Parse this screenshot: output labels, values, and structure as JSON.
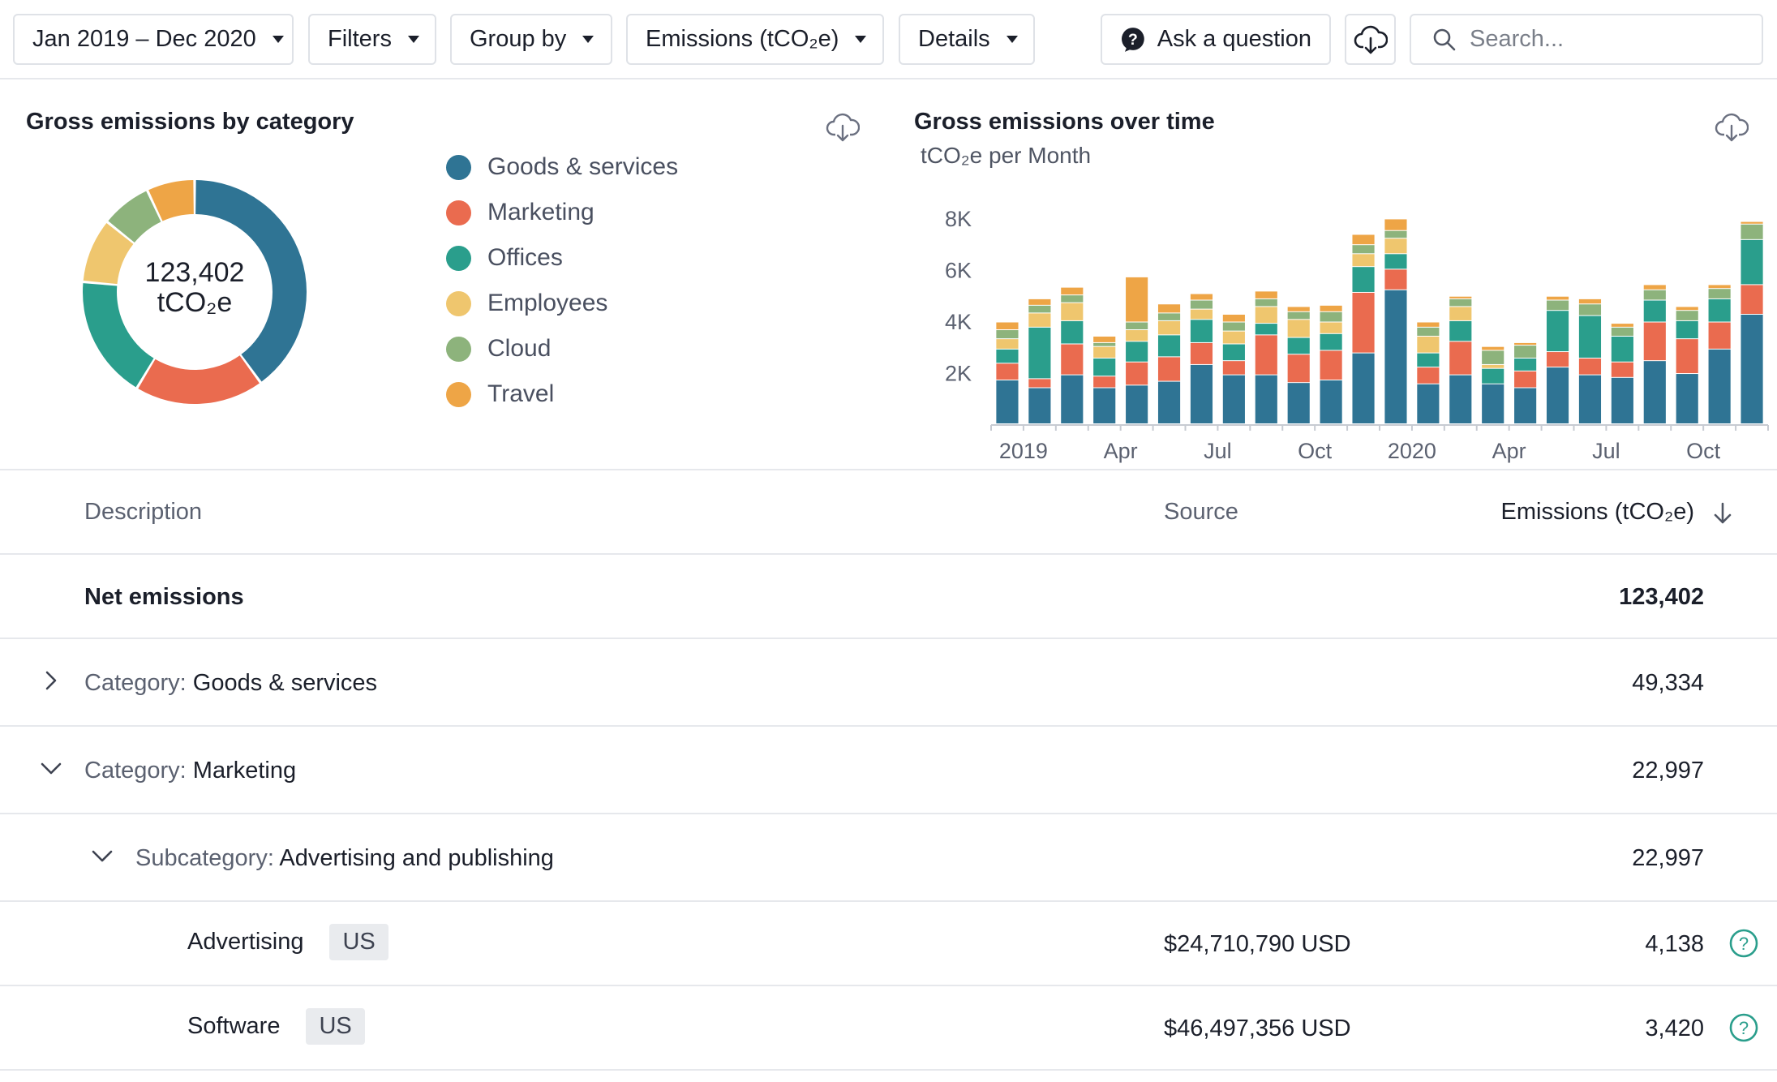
{
  "toolbar": {
    "date_range": "Jan 2019 – Dec 2020",
    "filters": "Filters",
    "group_by": "Group by",
    "emissions": "Emissions (tCO₂e)",
    "details": "Details",
    "ask": "Ask a question",
    "search_placeholder": "Search..."
  },
  "donut_panel": {
    "title": "Gross emissions by category",
    "center_value": "123,402",
    "center_unit": "tCO₂e",
    "legend": [
      {
        "label": "Goods & services",
        "color": "#2f7494"
      },
      {
        "label": "Marketing",
        "color": "#ea6b4f"
      },
      {
        "label": "Offices",
        "color": "#2a9e8c"
      },
      {
        "label": "Employees",
        "color": "#efc66e"
      },
      {
        "label": "Cloud",
        "color": "#8db37c"
      },
      {
        "label": "Travel",
        "color": "#eea546"
      }
    ],
    "slices": [
      49334,
      22997,
      22000,
      11500,
      9000,
      8571
    ]
  },
  "chart_panel": {
    "title": "Gross emissions over time",
    "subtitle": "tCO₂e per Month"
  },
  "chart_data": {
    "type": "bar",
    "stacked": true,
    "title": "Gross emissions over time",
    "ylabel": "tCO₂e per Month",
    "ylim": [
      0,
      9600
    ],
    "yticks": [
      "2K",
      "4K",
      "6K",
      "8K"
    ],
    "ytick_values": [
      2000,
      4000,
      6000,
      8000
    ],
    "xtick_labels": [
      "2019",
      "Apr",
      "Jul",
      "Oct",
      "2020",
      "Apr",
      "Jul",
      "Oct"
    ],
    "xtick_indices": [
      1,
      4,
      7,
      10,
      13,
      16,
      19,
      22
    ],
    "categories": [
      "Jan 2019",
      "Feb 2019",
      "Mar 2019",
      "Apr 2019",
      "May 2019",
      "Jun 2019",
      "Jul 2019",
      "Aug 2019",
      "Sep 2019",
      "Oct 2019",
      "Nov 2019",
      "Dec 2019",
      "Jan 2020",
      "Feb 2020",
      "Mar 2020",
      "Apr 2020",
      "May 2020",
      "Jun 2020",
      "Jul 2020",
      "Aug 2020",
      "Sep 2020",
      "Oct 2020",
      "Nov 2020",
      "Dec 2020"
    ],
    "series": [
      {
        "name": "Goods & services",
        "color": "#2f7494",
        "values": [
          1700,
          1400,
          1900,
          1400,
          1500,
          1650,
          2300,
          1900,
          1900,
          1600,
          1700,
          2750,
          5200,
          1550,
          1900,
          1550,
          1400,
          2200,
          1900,
          1800,
          2450,
          1950,
          2900,
          4250
        ]
      },
      {
        "name": "Marketing",
        "color": "#ea6b4f",
        "values": [
          650,
          350,
          1200,
          450,
          900,
          950,
          850,
          550,
          1550,
          1100,
          1150,
          2350,
          800,
          650,
          1300,
          0,
          650,
          600,
          650,
          600,
          1500,
          1350,
          1050,
          1150
        ]
      },
      {
        "name": "Offices",
        "color": "#2a9e8c",
        "values": [
          550,
          2000,
          900,
          700,
          800,
          850,
          900,
          650,
          450,
          650,
          650,
          1000,
          600,
          550,
          800,
          600,
          500,
          1600,
          1650,
          1000,
          850,
          700,
          900,
          1750
        ]
      },
      {
        "name": "Employees",
        "color": "#efc66e",
        "values": [
          400,
          550,
          700,
          450,
          450,
          550,
          400,
          500,
          650,
          700,
          450,
          500,
          600,
          650,
          550,
          150,
          0,
          0,
          0,
          0,
          0,
          0,
          0,
          0
        ]
      },
      {
        "name": "Cloud",
        "color": "#8db37c",
        "values": [
          350,
          300,
          300,
          150,
          300,
          300,
          350,
          350,
          300,
          300,
          400,
          350,
          300,
          350,
          300,
          550,
          500,
          400,
          450,
          350,
          400,
          400,
          400,
          600
        ]
      },
      {
        "name": "Travel",
        "color": "#eea546",
        "values": [
          300,
          250,
          300,
          250,
          1750,
          350,
          250,
          300,
          300,
          200,
          250,
          400,
          450,
          200,
          100,
          150,
          100,
          150,
          200,
          150,
          200,
          150,
          150,
          100
        ]
      }
    ]
  },
  "table": {
    "headers": {
      "description": "Description",
      "source": "Source",
      "emissions": "Emissions (tCO₂e)"
    },
    "net": {
      "label": "Net emissions",
      "value": "123,402"
    },
    "cat1": {
      "prefix": "Category:",
      "name": "Goods & services",
      "value": "49,334"
    },
    "cat2": {
      "prefix": "Category:",
      "name": "Marketing",
      "value": "22,997"
    },
    "sub": {
      "prefix": "Subcategory:",
      "name": "Advertising and publishing",
      "value": "22,997"
    },
    "items": [
      {
        "name": "Advertising",
        "tag": "US",
        "source": "$24,710,790 USD",
        "value": "4,138"
      },
      {
        "name": "Software",
        "tag": "US",
        "source": "$46,497,356 USD",
        "value": "3,420"
      }
    ]
  }
}
